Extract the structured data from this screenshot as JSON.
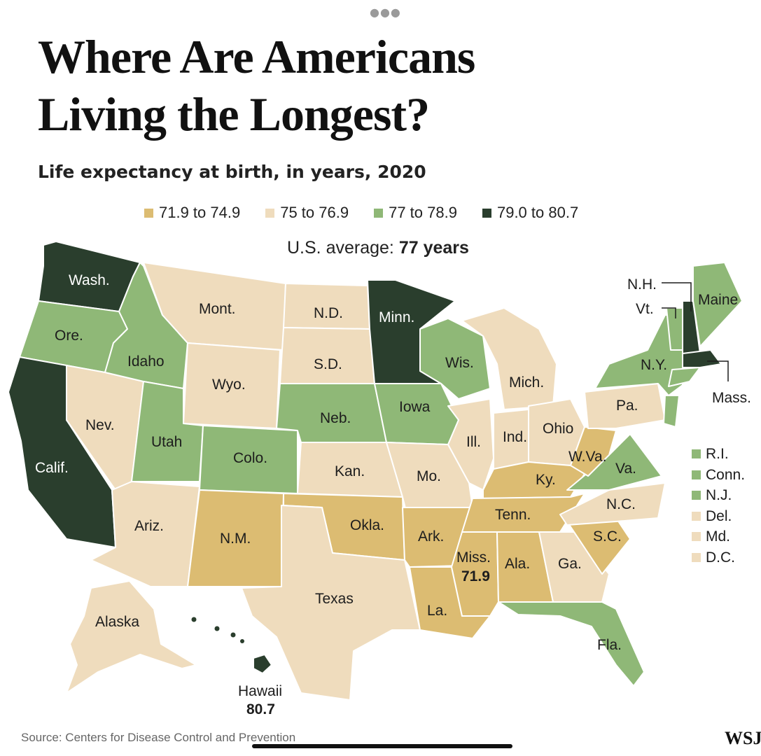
{
  "header": {
    "title_line1": "Where Are Americans",
    "title_line2": "Living the Longest?",
    "subtitle": "Life expectancy at birth, in years, 2020"
  },
  "legend": [
    {
      "label": "71.9 to 74.9",
      "color": "#dcbc72"
    },
    {
      "label": "75 to 76.9",
      "color": "#efdcbd"
    },
    {
      "label": "77 to 78.9",
      "color": "#8fb877"
    },
    {
      "label": "79.0 to 80.7",
      "color": "#2a3e2d"
    }
  ],
  "average": {
    "label": "U.S. average:",
    "value": "77 years"
  },
  "states": {
    "wash": "Wash.",
    "ore": "Ore.",
    "calif": "Calif.",
    "idaho": "Idaho",
    "nev": "Nev.",
    "mont": "Mont.",
    "wyo": "Wyo.",
    "utah": "Utah",
    "ariz": "Ariz.",
    "colo": "Colo.",
    "nm": "N.M.",
    "nd": "N.D.",
    "sd": "S.D.",
    "neb": "Neb.",
    "kan": "Kan.",
    "okla": "Okla.",
    "texas": "Texas",
    "minn": "Minn.",
    "iowa": "Iowa",
    "mo": "Mo.",
    "ark": "Ark.",
    "la": "La.",
    "wis": "Wis.",
    "ill": "Ill.",
    "mich": "Mich.",
    "ind": "Ind.",
    "ohio": "Ohio",
    "ky": "Ky.",
    "tenn": "Tenn.",
    "miss": "Miss.",
    "miss_value": "71.9",
    "ala": "Ala.",
    "ga": "Ga.",
    "fla": "Fla.",
    "sc": "S.C.",
    "nc": "N.C.",
    "va": "Va.",
    "wva": "W.Va.",
    "pa": "Pa.",
    "ny": "N.Y.",
    "maine": "Maine",
    "nh": "N.H.",
    "vt": "Vt.",
    "mass": "Mass.",
    "alaska": "Alaska",
    "hawaii": "Hawaii",
    "hawaii_value": "80.7"
  },
  "side_legend": [
    {
      "label": "R.I.",
      "color": "#8fb877"
    },
    {
      "label": "Conn.",
      "color": "#8fb877"
    },
    {
      "label": "N.J.",
      "color": "#8fb877"
    },
    {
      "label": "Del.",
      "color": "#efdcbd"
    },
    {
      "label": "Md.",
      "color": "#efdcbd"
    },
    {
      "label": "D.C.",
      "color": "#efdcbd"
    }
  ],
  "footer": {
    "source": "Source: Centers for Disease Control and Prevention",
    "brand": "WSJ"
  },
  "colors": {
    "low": "#dcbc72",
    "mid": "#efdcbd",
    "high": "#8fb877",
    "top": "#2a3e2d"
  }
}
